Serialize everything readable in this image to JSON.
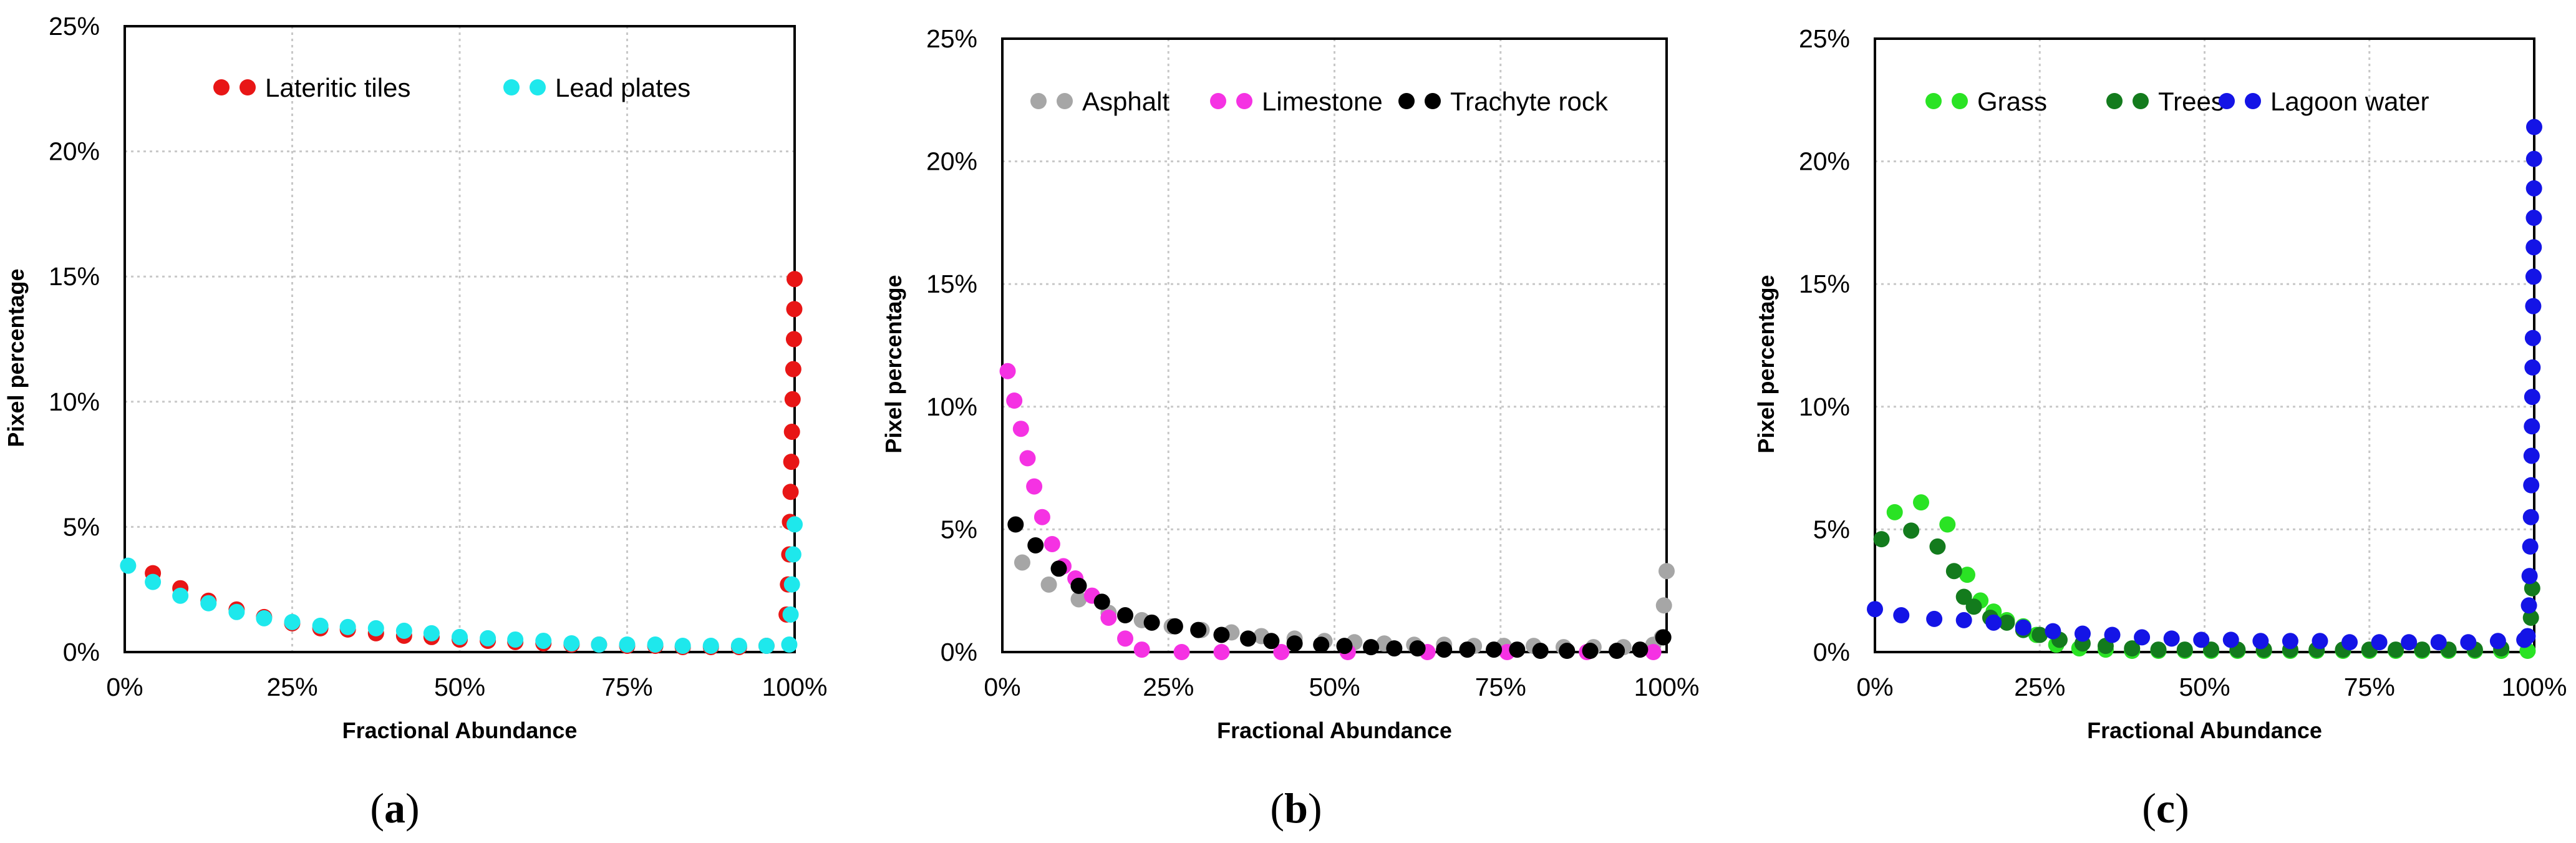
{
  "figure": {
    "panel_captions": [
      "(a)",
      "(b)",
      "(c)"
    ]
  },
  "chart_data": [
    {
      "type": "scatter",
      "panel": "a",
      "caption_letter": "a",
      "xlabel": "Fractional Abundance",
      "ylabel": "Pixel percentage",
      "xlim": [
        0,
        100
      ],
      "ylim": [
        0,
        25
      ],
      "x_ticks": [
        "0%",
        "25%",
        "50%",
        "75%",
        "100%"
      ],
      "y_ticks": [
        "0%",
        "5%",
        "10%",
        "15%",
        "20%",
        "25%"
      ],
      "grid": true,
      "legend_position": "top",
      "series": [
        {
          "name": "Lateritic tiles",
          "color": "#e81616",
          "points": [
            [
              4.2,
              3.15
            ],
            [
              8.3,
              2.55
            ],
            [
              12.5,
              2.05
            ],
            [
              16.7,
              1.7
            ],
            [
              20.8,
              1.4
            ],
            [
              25,
              1.15
            ],
            [
              29.2,
              0.95
            ],
            [
              33.3,
              0.9
            ],
            [
              37.5,
              0.75
            ],
            [
              41.7,
              0.65
            ],
            [
              45.8,
              0.6
            ],
            [
              50,
              0.5
            ],
            [
              54.2,
              0.45
            ],
            [
              58.3,
              0.4
            ],
            [
              62.5,
              0.35
            ],
            [
              66.7,
              0.3
            ],
            [
              70.8,
              0.3
            ],
            [
              75,
              0.25
            ],
            [
              79.2,
              0.25
            ],
            [
              83.3,
              0.2
            ],
            [
              87.5,
              0.2
            ],
            [
              91.7,
              0.2
            ],
            [
              95.8,
              0.25
            ],
            [
              98.8,
              1.5
            ],
            [
              99,
              2.7
            ],
            [
              99.2,
              3.9
            ],
            [
              99.3,
              5.2
            ],
            [
              99.4,
              6.4
            ],
            [
              99.5,
              7.6
            ],
            [
              99.6,
              8.8
            ],
            [
              99.7,
              10.1
            ],
            [
              99.8,
              11.3
            ],
            [
              99.9,
              12.5
            ],
            [
              99.95,
              13.7
            ],
            [
              100,
              14.9
            ]
          ]
        },
        {
          "name": "Lead plates",
          "color": "#1ee8ec",
          "points": [
            [
              0.5,
              3.45
            ],
            [
              4.2,
              2.8
            ],
            [
              8.3,
              2.25
            ],
            [
              12.5,
              1.95
            ],
            [
              16.7,
              1.6
            ],
            [
              20.8,
              1.35
            ],
            [
              25,
              1.2
            ],
            [
              29.2,
              1.05
            ],
            [
              33.3,
              1.0
            ],
            [
              37.5,
              0.95
            ],
            [
              41.7,
              0.85
            ],
            [
              45.8,
              0.75
            ],
            [
              50,
              0.6
            ],
            [
              54.2,
              0.55
            ],
            [
              58.3,
              0.5
            ],
            [
              62.5,
              0.45
            ],
            [
              66.7,
              0.35
            ],
            [
              70.8,
              0.3
            ],
            [
              75,
              0.3
            ],
            [
              79.2,
              0.3
            ],
            [
              83.3,
              0.25
            ],
            [
              87.5,
              0.25
            ],
            [
              91.7,
              0.25
            ],
            [
              95.8,
              0.25
            ],
            [
              99.2,
              0.3
            ],
            [
              99.4,
              1.5
            ],
            [
              99.6,
              2.7
            ],
            [
              99.8,
              3.9
            ],
            [
              100,
              5.1
            ]
          ]
        }
      ]
    },
    {
      "type": "scatter",
      "panel": "b",
      "caption_letter": "b",
      "xlabel": "Fractional Abundance",
      "ylabel": "Pixel percentage",
      "xlim": [
        0,
        100
      ],
      "ylim": [
        0,
        25
      ],
      "x_ticks": [
        "0%",
        "25%",
        "50%",
        "75%",
        "100%"
      ],
      "y_ticks": [
        "0%",
        "5%",
        "10%",
        "15%",
        "20%",
        "25%"
      ],
      "grid": true,
      "legend_position": "top",
      "series": [
        {
          "name": "Asphalt",
          "color": "#a6a6a6",
          "points": [
            [
              3,
              3.65
            ],
            [
              7,
              2.75
            ],
            [
              11.5,
              2.15
            ],
            [
              16,
              1.6
            ],
            [
              21,
              1.3
            ],
            [
              25.5,
              1.05
            ],
            [
              30,
              0.9
            ],
            [
              34.5,
              0.8
            ],
            [
              39,
              0.65
            ],
            [
              44,
              0.55
            ],
            [
              48.5,
              0.45
            ],
            [
              53,
              0.4
            ],
            [
              57.5,
              0.35
            ],
            [
              62,
              0.3
            ],
            [
              66.5,
              0.3
            ],
            [
              71,
              0.25
            ],
            [
              75.5,
              0.25
            ],
            [
              80,
              0.25
            ],
            [
              84.5,
              0.2
            ],
            [
              89,
              0.2
            ],
            [
              93.5,
              0.2
            ],
            [
              98,
              0.3
            ],
            [
              99.3,
              0.6
            ],
            [
              99.6,
              1.9
            ],
            [
              100,
              3.3
            ]
          ]
        },
        {
          "name": "Limestone",
          "color": "#f532e3",
          "points": [
            [
              0.8,
              11.45
            ],
            [
              1.8,
              10.25
            ],
            [
              2.8,
              9.1
            ],
            [
              3.8,
              7.9
            ],
            [
              4.8,
              6.75
            ],
            [
              6,
              5.5
            ],
            [
              7.5,
              4.4
            ],
            [
              9.2,
              3.5
            ],
            [
              11,
              3.0
            ],
            [
              13.5,
              2.3
            ],
            [
              16,
              1.4
            ],
            [
              18.5,
              0.55
            ],
            [
              21,
              0.1
            ],
            [
              27,
              0.0
            ],
            [
              33,
              0.0
            ],
            [
              42,
              0.0
            ],
            [
              52,
              0.0
            ],
            [
              64,
              0.0
            ],
            [
              76,
              0.0
            ],
            [
              88,
              0.0
            ],
            [
              98,
              0.0
            ]
          ]
        },
        {
          "name": "Trachyte rock",
          "color": "#000000",
          "points": [
            [
              2,
              5.2
            ],
            [
              5,
              4.35
            ],
            [
              8.5,
              3.4
            ],
            [
              11.5,
              2.7
            ],
            [
              15,
              2.05
            ],
            [
              18.5,
              1.5
            ],
            [
              22.5,
              1.2
            ],
            [
              26,
              1.05
            ],
            [
              29.5,
              0.9
            ],
            [
              33,
              0.7
            ],
            [
              37,
              0.55
            ],
            [
              40.5,
              0.45
            ],
            [
              44,
              0.35
            ],
            [
              48,
              0.3
            ],
            [
              51.5,
              0.25
            ],
            [
              55.5,
              0.2
            ],
            [
              59,
              0.15
            ],
            [
              62.5,
              0.15
            ],
            [
              66.5,
              0.1
            ],
            [
              70,
              0.1
            ],
            [
              74,
              0.1
            ],
            [
              77.5,
              0.1
            ],
            [
              81,
              0.05
            ],
            [
              85,
              0.05
            ],
            [
              88.5,
              0.05
            ],
            [
              92.5,
              0.05
            ],
            [
              96,
              0.1
            ],
            [
              99.5,
              0.6
            ]
          ]
        }
      ]
    },
    {
      "type": "scatter",
      "panel": "c",
      "caption_letter": "c",
      "xlabel": "Fractional Abundance",
      "ylabel": "Pixel percentage",
      "xlim": [
        0,
        100
      ],
      "ylim": [
        0,
        25
      ],
      "x_ticks": [
        "0%",
        "25%",
        "50%",
        "75%",
        "100%"
      ],
      "y_ticks": [
        "0%",
        "5%",
        "10%",
        "15%",
        "20%",
        "25%"
      ],
      "grid": true,
      "legend_position": "top",
      "series": [
        {
          "name": "Grass",
          "color": "#2ae324",
          "points": [
            [
              3,
              5.7
            ],
            [
              7,
              6.1
            ],
            [
              11,
              5.2
            ],
            [
              14,
              3.15
            ],
            [
              16,
              2.1
            ],
            [
              18,
              1.65
            ],
            [
              20,
              1.3
            ],
            [
              22.5,
              1.05
            ],
            [
              24.5,
              0.7
            ],
            [
              27.5,
              0.3
            ],
            [
              31,
              0.15
            ],
            [
              35,
              0.1
            ],
            [
              39,
              0.05
            ],
            [
              43,
              0.05
            ],
            [
              47,
              0.05
            ],
            [
              51,
              0.05
            ],
            [
              55,
              0.05
            ],
            [
              59,
              0.05
            ],
            [
              63,
              0.05
            ],
            [
              67,
              0.05
            ],
            [
              71,
              0.05
            ],
            [
              75,
              0.05
            ],
            [
              79,
              0.05
            ],
            [
              83,
              0.05
            ],
            [
              87,
              0.05
            ],
            [
              91,
              0.05
            ],
            [
              95,
              0.05
            ],
            [
              99,
              0.05
            ]
          ]
        },
        {
          "name": "Trees",
          "color": "#137b1d",
          "points": [
            [
              1,
              4.6
            ],
            [
              5.5,
              4.95
            ],
            [
              9.5,
              4.3
            ],
            [
              12,
              3.3
            ],
            [
              13.5,
              2.25
            ],
            [
              15,
              1.85
            ],
            [
              17.5,
              1.4
            ],
            [
              20,
              1.2
            ],
            [
              22.5,
              0.9
            ],
            [
              25,
              0.7
            ],
            [
              28,
              0.5
            ],
            [
              31.5,
              0.35
            ],
            [
              35,
              0.25
            ],
            [
              39,
              0.15
            ],
            [
              43,
              0.1
            ],
            [
              47,
              0.1
            ],
            [
              51,
              0.1
            ],
            [
              55,
              0.1
            ],
            [
              59,
              0.1
            ],
            [
              63,
              0.1
            ],
            [
              67,
              0.1
            ],
            [
              71,
              0.1
            ],
            [
              75,
              0.1
            ],
            [
              79,
              0.1
            ],
            [
              83,
              0.1
            ],
            [
              87,
              0.1
            ],
            [
              91,
              0.1
            ],
            [
              95,
              0.15
            ],
            [
              99.5,
              1.4
            ],
            [
              99.7,
              2.6
            ]
          ]
        },
        {
          "name": "Lagoon water",
          "color": "#1414e6",
          "points": [
            [
              0,
              1.75
            ],
            [
              4,
              1.5
            ],
            [
              9,
              1.35
            ],
            [
              13.5,
              1.3
            ],
            [
              18,
              1.2
            ],
            [
              22.5,
              1.0
            ],
            [
              27,
              0.85
            ],
            [
              31.5,
              0.75
            ],
            [
              36,
              0.7
            ],
            [
              40.5,
              0.6
            ],
            [
              45,
              0.55
            ],
            [
              49.5,
              0.5
            ],
            [
              54,
              0.5
            ],
            [
              58.5,
              0.45
            ],
            [
              63,
              0.45
            ],
            [
              67.5,
              0.45
            ],
            [
              72,
              0.4
            ],
            [
              76.5,
              0.4
            ],
            [
              81,
              0.4
            ],
            [
              85.5,
              0.4
            ],
            [
              90,
              0.4
            ],
            [
              94.5,
              0.45
            ],
            [
              98.5,
              0.5
            ],
            [
              99,
              0.65
            ],
            [
              99.2,
              1.9
            ],
            [
              99.3,
              3.1
            ],
            [
              99.4,
              4.3
            ],
            [
              99.5,
              5.5
            ],
            [
              99.55,
              6.8
            ],
            [
              99.6,
              8.0
            ],
            [
              99.65,
              9.2
            ],
            [
              99.7,
              10.4
            ],
            [
              99.75,
              11.6
            ],
            [
              99.8,
              12.8
            ],
            [
              99.85,
              14.1
            ],
            [
              99.9,
              15.3
            ],
            [
              99.93,
              16.5
            ],
            [
              99.95,
              17.7
            ],
            [
              99.97,
              18.9
            ],
            [
              99.98,
              20.1
            ],
            [
              100,
              21.4
            ]
          ]
        }
      ]
    }
  ]
}
